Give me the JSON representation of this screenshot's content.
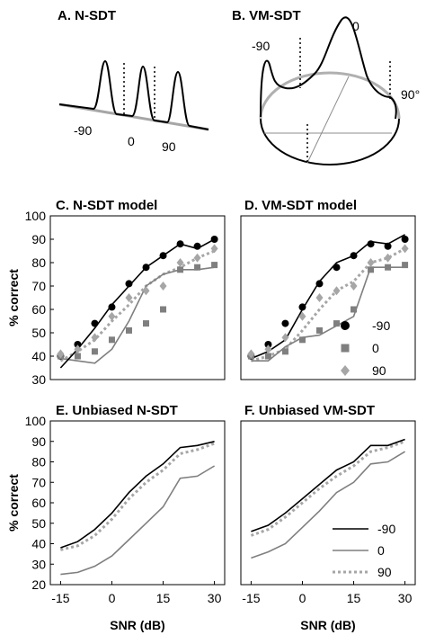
{
  "figure": {
    "top_panels": [
      {
        "title": "A. N-SDT",
        "labels": [
          "-90",
          "0",
          "90"
        ]
      },
      {
        "title": "B. VM-SDT",
        "labels": [
          "-90",
          "0",
          "90°"
        ]
      }
    ]
  },
  "colors": {
    "neg90": "#000000",
    "zero": "#7f7f7f",
    "pos90": "#a6a6a6"
  },
  "chart_data": [
    {
      "type": "line",
      "title": "C. N-SDT model",
      "ylabel": "% correct",
      "xlabel": "",
      "ylim": [
        30,
        100
      ],
      "yticks": [
        30,
        40,
        50,
        60,
        70,
        80,
        90,
        100
      ],
      "xlim": [
        -18,
        33
      ],
      "xticks": [],
      "x": [
        -15,
        -10,
        -5,
        0,
        5,
        10,
        15,
        20,
        25,
        30
      ],
      "series": [
        {
          "name": "-90",
          "style": "solid",
          "color": "#000000",
          "values": [
            35,
            43,
            52,
            62,
            70,
            78,
            83,
            88,
            86,
            90
          ]
        },
        {
          "name": "0",
          "style": "solid",
          "color": "#7f7f7f",
          "values": [
            39,
            38,
            37,
            43,
            55,
            70,
            75,
            77,
            77,
            78
          ]
        },
        {
          "name": "90",
          "style": "dotted",
          "color": "#a6a6a6",
          "values": [
            38,
            42,
            47,
            55,
            62,
            70,
            75,
            78,
            82,
            85
          ]
        }
      ],
      "points": [
        {
          "name": "-90",
          "marker": "circle",
          "color": "#000000",
          "x": [
            -15,
            -10,
            -5,
            0,
            5,
            10,
            15,
            20,
            25,
            30
          ],
          "values": [
            40,
            45,
            54,
            61,
            71,
            78,
            83,
            88,
            87,
            90
          ]
        },
        {
          "name": "0",
          "marker": "square",
          "color": "#7f7f7f",
          "x": [
            -15,
            -10,
            -5,
            0,
            5,
            10,
            15,
            20,
            25,
            30
          ],
          "values": [
            40,
            40,
            42,
            47,
            51,
            54,
            60,
            77,
            78,
            79
          ]
        },
        {
          "name": "90",
          "marker": "diamond",
          "color": "#a6a6a6",
          "x": [
            -15,
            -10,
            -5,
            0,
            5,
            10,
            15,
            20,
            25,
            30
          ],
          "values": [
            41,
            43,
            48,
            57,
            65,
            68,
            70,
            80,
            82,
            86
          ]
        }
      ]
    },
    {
      "type": "line",
      "title": "D. VM-SDT model",
      "ylabel": "",
      "xlabel": "",
      "ylim": [
        30,
        100
      ],
      "yticks": [],
      "xlim": [
        -18,
        33
      ],
      "xticks": [],
      "x": [
        -15,
        -10,
        -5,
        0,
        5,
        10,
        15,
        20,
        25,
        30
      ],
      "series": [
        {
          "name": "-90",
          "style": "solid",
          "color": "#000000",
          "values": [
            39,
            42,
            47,
            60,
            72,
            80,
            83,
            89,
            88,
            92
          ]
        },
        {
          "name": "0",
          "style": "solid",
          "color": "#7f7f7f",
          "values": [
            38,
            38,
            44,
            48,
            49,
            53,
            57,
            78,
            78,
            78
          ]
        },
        {
          "name": "90",
          "style": "dotted",
          "color": "#a6a6a6",
          "values": [
            38,
            40,
            43,
            51,
            60,
            68,
            72,
            80,
            82,
            86
          ]
        }
      ],
      "points": [
        {
          "name": "-90",
          "marker": "circle",
          "color": "#000000",
          "x": [
            -15,
            -10,
            -5,
            0,
            5,
            10,
            15,
            20,
            25,
            30
          ],
          "values": [
            40,
            45,
            54,
            61,
            71,
            78,
            83,
            88,
            87,
            90
          ]
        },
        {
          "name": "0",
          "marker": "square",
          "color": "#7f7f7f",
          "x": [
            -15,
            -10,
            -5,
            0,
            5,
            10,
            15,
            20,
            25,
            30
          ],
          "values": [
            40,
            40,
            42,
            47,
            51,
            54,
            60,
            77,
            78,
            79
          ]
        },
        {
          "name": "90",
          "marker": "diamond",
          "color": "#a6a6a6",
          "x": [
            -15,
            -10,
            -5,
            0,
            5,
            10,
            15,
            20,
            25,
            30
          ],
          "values": [
            41,
            43,
            48,
            57,
            65,
            68,
            70,
            80,
            82,
            86
          ]
        }
      ],
      "legend": {
        "placement": "inside-right",
        "kind": "markers",
        "entries": [
          "-90",
          "0",
          "90"
        ]
      }
    },
    {
      "type": "line",
      "title": "E. Unbiased N-SDT",
      "ylabel": "% correct",
      "xlabel": "SNR (dB)",
      "ylim": [
        20,
        100
      ],
      "yticks": [
        20,
        30,
        40,
        50,
        60,
        70,
        80,
        90,
        100
      ],
      "xlim": [
        -18,
        33
      ],
      "xticks": [
        -15,
        0,
        15,
        30
      ],
      "x": [
        -15,
        -10,
        -5,
        0,
        5,
        10,
        15,
        20,
        25,
        30
      ],
      "series": [
        {
          "name": "-90",
          "style": "solid",
          "color": "#000000",
          "values": [
            38,
            41,
            47,
            55,
            65,
            73,
            79,
            87,
            88,
            90
          ]
        },
        {
          "name": "0",
          "style": "solid",
          "color": "#7f7f7f",
          "values": [
            25,
            26,
            29,
            34,
            42,
            50,
            58,
            72,
            73,
            78
          ]
        },
        {
          "name": "90",
          "style": "dotted",
          "color": "#a6a6a6",
          "values": [
            37,
            39,
            44,
            52,
            62,
            70,
            76,
            84,
            86,
            89
          ]
        }
      ]
    },
    {
      "type": "line",
      "title": "F. Unbiased VM-SDT",
      "ylabel": "",
      "xlabel": "SNR (dB)",
      "ylim": [
        20,
        100
      ],
      "yticks": [],
      "xlim": [
        -18,
        33
      ],
      "xticks": [
        -15,
        0,
        15,
        30
      ],
      "x": [
        -15,
        -10,
        -5,
        0,
        5,
        10,
        15,
        20,
        25,
        30
      ],
      "series": [
        {
          "name": "-90",
          "style": "solid",
          "color": "#000000",
          "values": [
            46,
            49,
            55,
            62,
            69,
            76,
            80,
            88,
            88,
            91
          ]
        },
        {
          "name": "0",
          "style": "solid",
          "color": "#7f7f7f",
          "values": [
            33,
            36,
            40,
            48,
            56,
            65,
            70,
            79,
            80,
            85
          ]
        },
        {
          "name": "90",
          "style": "dotted",
          "color": "#a6a6a6",
          "values": [
            44,
            47,
            53,
            60,
            67,
            73,
            78,
            85,
            87,
            90
          ]
        }
      ],
      "legend": {
        "placement": "lower-right",
        "kind": "lines",
        "entries": [
          "-90",
          "0",
          "90"
        ]
      }
    }
  ]
}
